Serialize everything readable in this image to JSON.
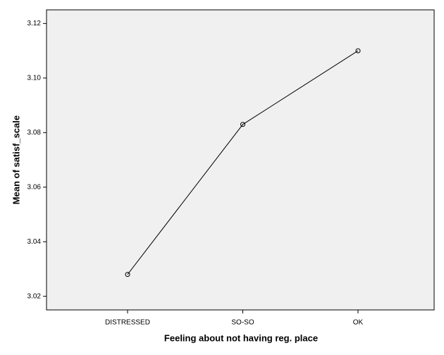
{
  "chart_data": {
    "type": "line",
    "categories": [
      "DISTRESSED",
      "SO-SO",
      "OK"
    ],
    "series": [
      {
        "name": "Mean of satisf_scale",
        "color": "#000000",
        "values": [
          3.028,
          3.083,
          3.11
        ]
      }
    ],
    "x_label": "Feeling about not having reg. place",
    "y_label": "Mean of satisf_scale",
    "ylim": [
      3.015,
      3.125
    ],
    "yticks": [
      3.02,
      3.04,
      3.06,
      3.08,
      {
        "value": 3.1,
        "label": "3.10"
      },
      3.12
    ],
    "grid": false
  }
}
